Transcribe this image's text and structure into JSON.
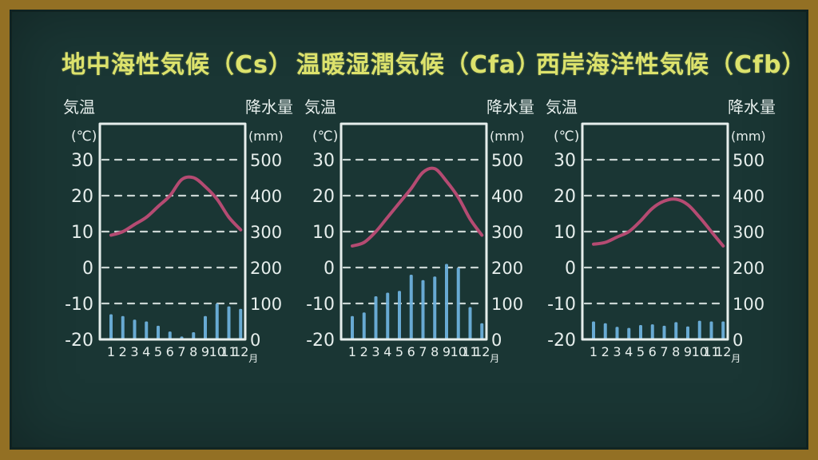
{
  "board": {
    "background_color": "#1a3634",
    "frame_color": "#937024",
    "chalk_color": "#e6eeec",
    "title_color": "#dce26c",
    "temperature_line_color": "#b54b72",
    "precipitation_bar_color": "#6db1dc"
  },
  "chart_data": [
    {
      "type": "combo",
      "title": "地中海性気候（Cs）",
      "climate_code": "Cs",
      "categories": [
        "1",
        "2",
        "3",
        "4",
        "5",
        "6",
        "7",
        "8",
        "9",
        "10",
        "11",
        "12"
      ],
      "x_unit": "月",
      "left_axis": {
        "label": "気温",
        "unit": "(℃)",
        "ticks": [
          30,
          20,
          10,
          0,
          -10,
          -20
        ],
        "range": [
          -20,
          40
        ]
      },
      "right_axis": {
        "label": "降水量",
        "unit": "(mm)",
        "ticks": [
          500,
          400,
          300,
          200,
          100,
          0
        ],
        "range": [
          0,
          600
        ]
      },
      "series": [
        {
          "name": "気温",
          "type": "line",
          "unit": "℃",
          "values": [
            9,
            10,
            12,
            14,
            17,
            20,
            24.5,
            25,
            22.5,
            19,
            14,
            10.5
          ]
        },
        {
          "name": "降水量",
          "type": "bar",
          "unit": "mm",
          "values": [
            70,
            65,
            55,
            50,
            38,
            22,
            8,
            20,
            65,
            100,
            92,
            85
          ]
        }
      ]
    },
    {
      "type": "combo",
      "title": "温暖湿潤気候（Cfa）",
      "climate_code": "Cfa",
      "categories": [
        "1",
        "2",
        "3",
        "4",
        "5",
        "6",
        "7",
        "8",
        "9",
        "10",
        "11",
        "12"
      ],
      "x_unit": "月",
      "left_axis": {
        "label": "気温",
        "unit": "(℃)",
        "ticks": [
          30,
          20,
          10,
          0,
          -10,
          -20
        ],
        "range": [
          -20,
          40
        ]
      },
      "right_axis": {
        "label": "降水量",
        "unit": "(mm)",
        "ticks": [
          500,
          400,
          300,
          200,
          100,
          0
        ],
        "range": [
          0,
          600
        ]
      },
      "series": [
        {
          "name": "気温",
          "type": "line",
          "unit": "℃",
          "values": [
            6,
            7,
            10,
            14,
            18,
            22,
            26.5,
            27.5,
            24,
            19.5,
            13.5,
            9
          ]
        },
        {
          "name": "降水量",
          "type": "bar",
          "unit": "mm",
          "values": [
            65,
            75,
            120,
            130,
            135,
            180,
            165,
            175,
            210,
            200,
            90,
            45
          ]
        }
      ]
    },
    {
      "type": "combo",
      "title": "西岸海洋性気候（Cfb）",
      "climate_code": "Cfb",
      "categories": [
        "1",
        "2",
        "3",
        "4",
        "5",
        "6",
        "7",
        "8",
        "9",
        "10",
        "11",
        "12"
      ],
      "x_unit": "月",
      "left_axis": {
        "label": "気温",
        "unit": "(℃)",
        "ticks": [
          30,
          20,
          10,
          0,
          -10,
          -20
        ],
        "range": [
          -20,
          40
        ]
      },
      "right_axis": {
        "label": "降水量",
        "unit": "(mm)",
        "ticks": [
          500,
          400,
          300,
          200,
          100,
          0
        ],
        "range": [
          0,
          600
        ]
      },
      "series": [
        {
          "name": "気温",
          "type": "line",
          "unit": "℃",
          "values": [
            6.5,
            7,
            8.5,
            10,
            13,
            16.5,
            18.5,
            19,
            17.5,
            14,
            10,
            6
          ]
        },
        {
          "name": "降水量",
          "type": "bar",
          "unit": "mm",
          "values": [
            50,
            45,
            35,
            32,
            40,
            42,
            38,
            48,
            36,
            52,
            50,
            50
          ]
        }
      ]
    }
  ]
}
